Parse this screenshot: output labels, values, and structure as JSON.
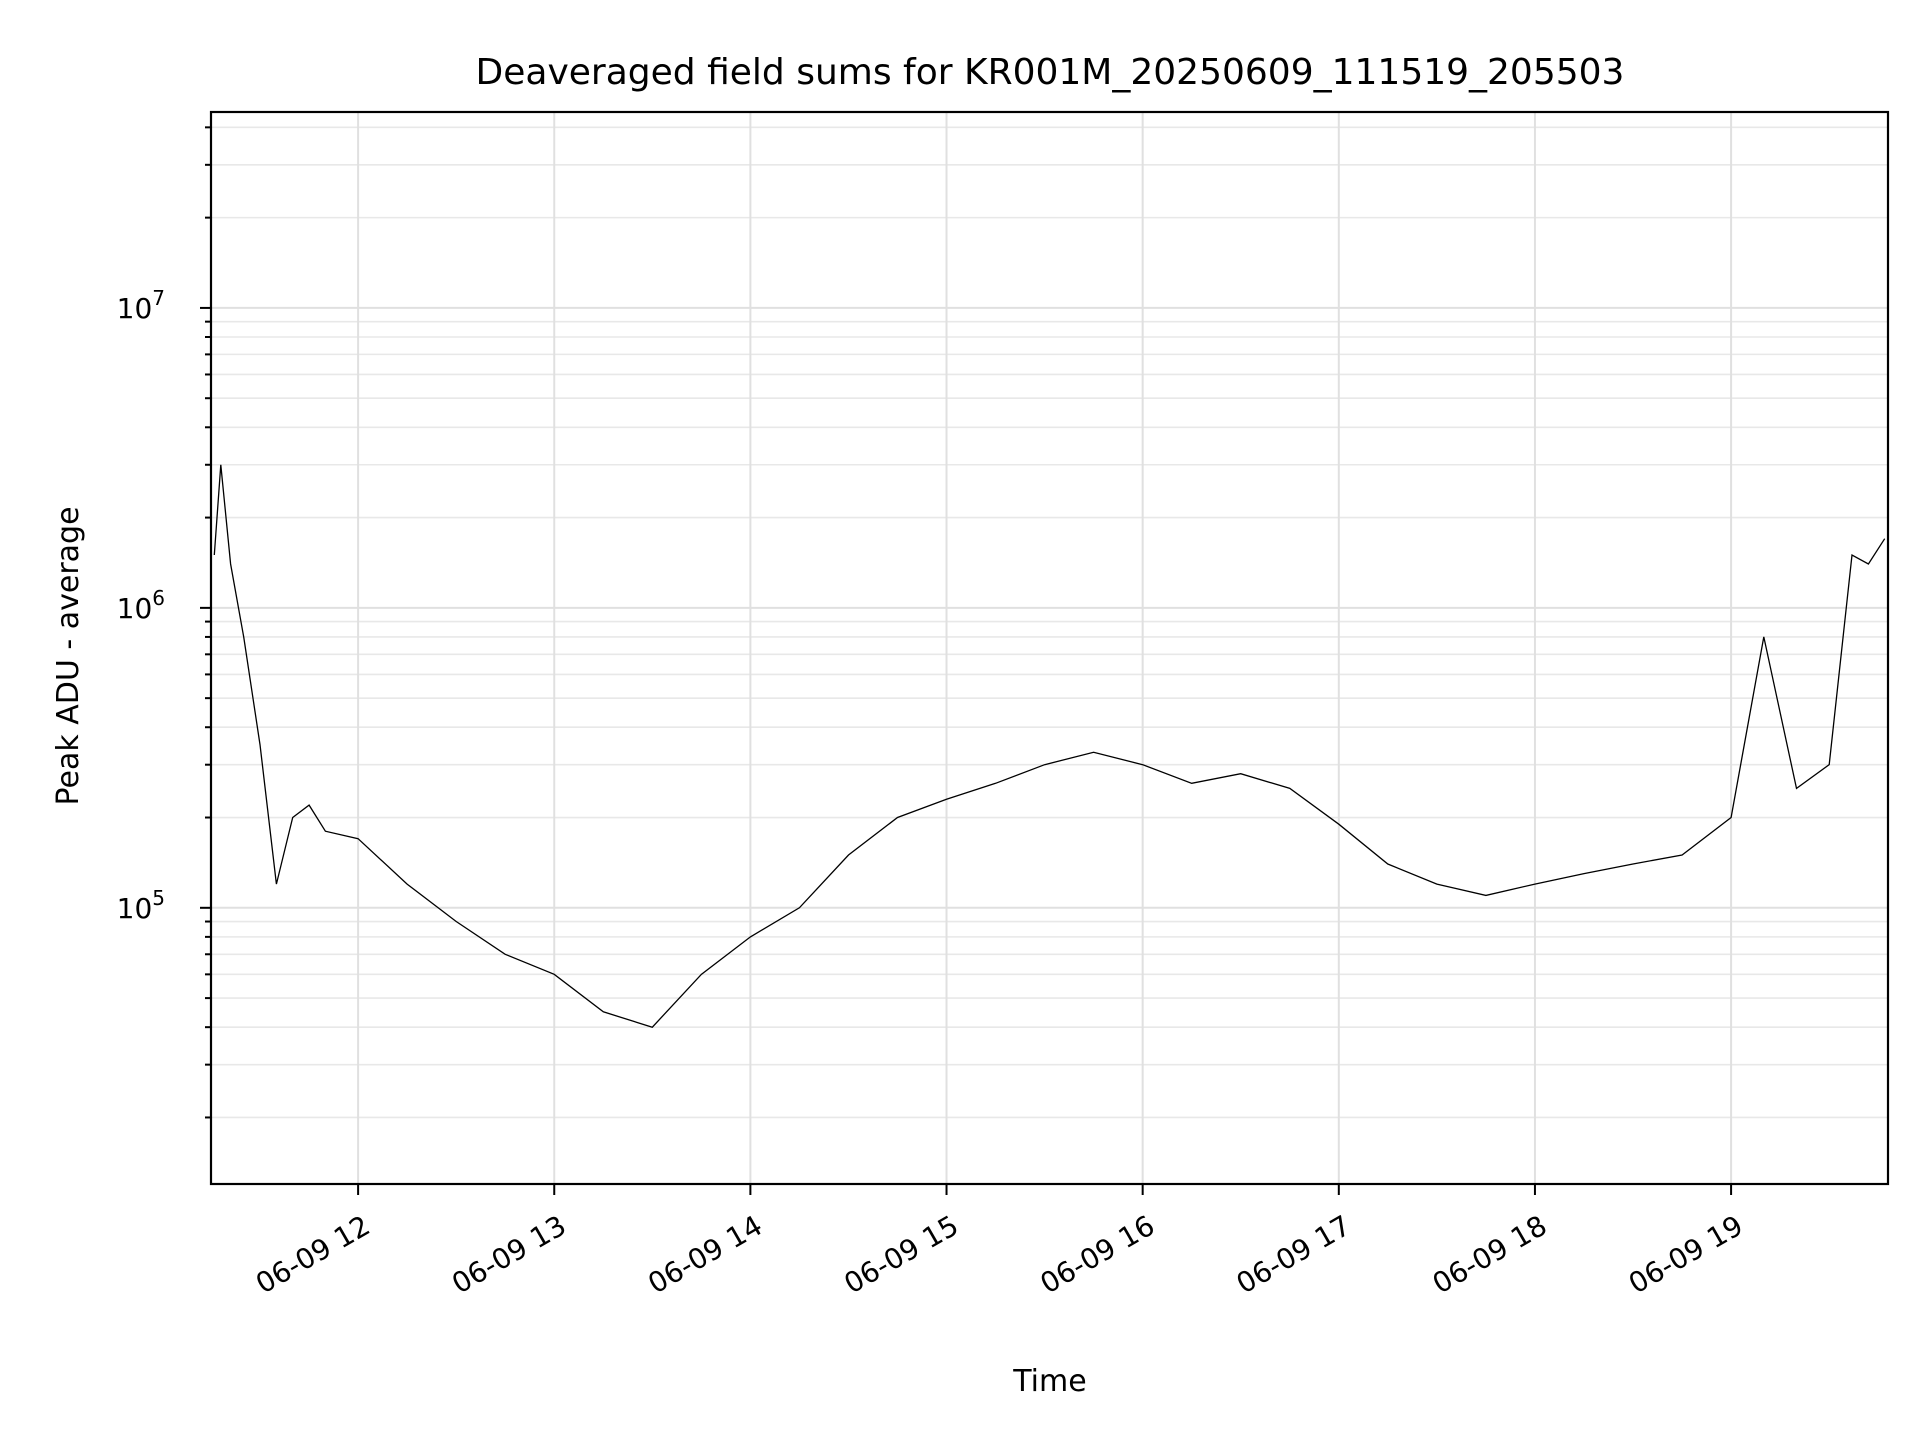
{
  "chart_data": {
    "type": "line",
    "title": "Deaveraged field sums for KR001M_20250609_111519_205503",
    "xlabel": "Time",
    "ylabel": "Peak ADU - average",
    "yscale": "log",
    "grid": true,
    "line_color": "#000000",
    "xlim": [
      "2025-06-09 11:15",
      "2025-06-09 19:48"
    ],
    "ylim": [
      12000,
      45000000
    ],
    "x_ticks": [
      {
        "value": "2025-06-09 12:00",
        "label": "06-09 12"
      },
      {
        "value": "2025-06-09 13:00",
        "label": "06-09 13"
      },
      {
        "value": "2025-06-09 14:00",
        "label": "06-09 14"
      },
      {
        "value": "2025-06-09 15:00",
        "label": "06-09 15"
      },
      {
        "value": "2025-06-09 16:00",
        "label": "06-09 16"
      },
      {
        "value": "2025-06-09 17:00",
        "label": "06-09 17"
      },
      {
        "value": "2025-06-09 18:00",
        "label": "06-09 18"
      },
      {
        "value": "2025-06-09 19:00",
        "label": "06-09 19"
      }
    ],
    "y_ticks": [
      {
        "value": 100000,
        "base": "10",
        "exp": "5"
      },
      {
        "value": 1000000,
        "base": "10",
        "exp": "6"
      },
      {
        "value": 10000000,
        "base": "10",
        "exp": "7"
      }
    ],
    "series": [
      {
        "x": [
          "2025-06-09 11:16",
          "2025-06-09 11:18",
          "2025-06-09 11:21",
          "2025-06-09 11:25",
          "2025-06-09 11:30",
          "2025-06-09 11:35",
          "2025-06-09 11:40",
          "2025-06-09 11:45",
          "2025-06-09 11:50",
          "2025-06-09 12:00",
          "2025-06-09 12:15",
          "2025-06-09 12:30",
          "2025-06-09 12:45",
          "2025-06-09 13:00",
          "2025-06-09 13:15",
          "2025-06-09 13:30",
          "2025-06-09 13:45",
          "2025-06-09 14:00",
          "2025-06-09 14:15",
          "2025-06-09 14:30",
          "2025-06-09 14:45",
          "2025-06-09 15:00",
          "2025-06-09 15:15",
          "2025-06-09 15:30",
          "2025-06-09 15:45",
          "2025-06-09 16:00",
          "2025-06-09 16:15",
          "2025-06-09 16:30",
          "2025-06-09 16:45",
          "2025-06-09 17:00",
          "2025-06-09 17:15",
          "2025-06-09 17:30",
          "2025-06-09 17:45",
          "2025-06-09 18:00",
          "2025-06-09 18:15",
          "2025-06-09 18:30",
          "2025-06-09 18:45",
          "2025-06-09 19:00",
          "2025-06-09 19:10",
          "2025-06-09 19:20",
          "2025-06-09 19:30",
          "2025-06-09 19:37",
          "2025-06-09 19:42",
          "2025-06-09 19:47"
        ],
        "y": [
          1500000,
          3000000,
          1400000,
          800000,
          350000,
          120000,
          200000,
          220000,
          180000,
          170000,
          120000,
          90000,
          70000,
          60000,
          45000,
          40000,
          60000,
          80000,
          100000,
          150000,
          200000,
          230000,
          260000,
          300000,
          330000,
          300000,
          260000,
          280000,
          250000,
          190000,
          140000,
          120000,
          110000,
          120000,
          130000,
          140000,
          150000,
          200000,
          800000,
          250000,
          300000,
          1500000,
          1400000,
          1700000
        ]
      }
    ]
  }
}
